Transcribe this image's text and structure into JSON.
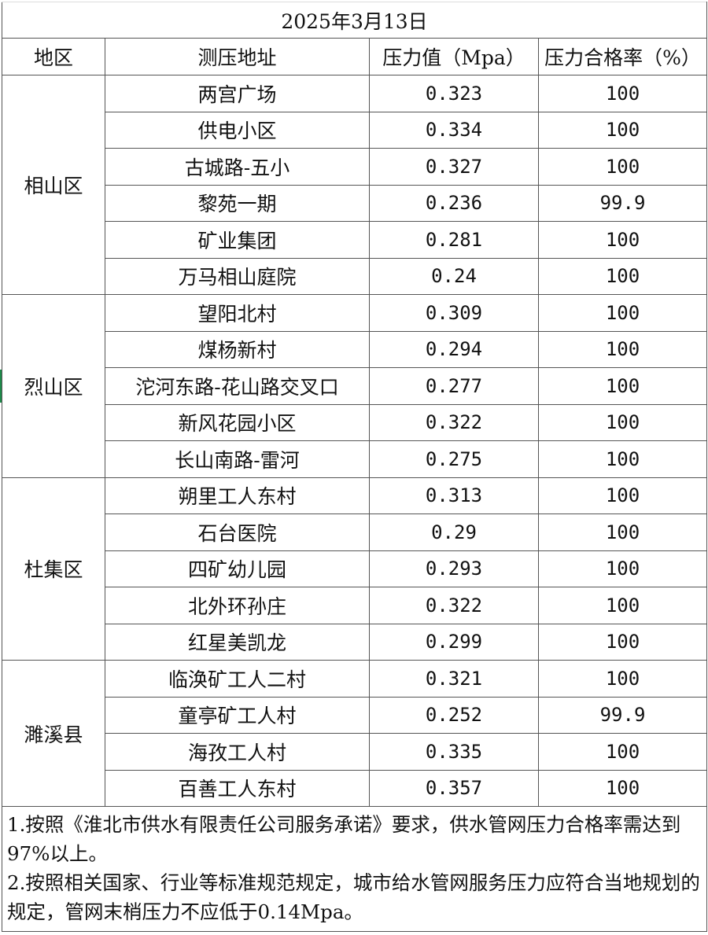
{
  "title": "2025年3月13日",
  "headers": [
    "地区",
    "测压地址",
    "压力值（Mpa）",
    "压力合格率（%）"
  ],
  "regions": [
    {
      "name": "相山区",
      "rows": [
        {
          "address": "两宫广场",
          "pressure": "0.323",
          "rate": "100"
        },
        {
          "address": "供电小区",
          "pressure": "0.334",
          "rate": "100"
        },
        {
          "address": "古城路-五小",
          "pressure": "0.327",
          "rate": "100"
        },
        {
          "address": "黎苑一期",
          "pressure": "0.236",
          "rate": "99.9"
        },
        {
          "address": "矿业集团",
          "pressure": "0.281",
          "rate": "100"
        },
        {
          "address": "万马相山庭院",
          "pressure": "0.24",
          "rate": "100"
        }
      ]
    },
    {
      "name": "烈山区",
      "rows": [
        {
          "address": "望阳北村",
          "pressure": "0.309",
          "rate": "100"
        },
        {
          "address": "煤杨新村",
          "pressure": "0.294",
          "rate": "100"
        },
        {
          "address": "沱河东路-花山路交叉口",
          "pressure": "0.277",
          "rate": "100"
        },
        {
          "address": "新风花园小区",
          "pressure": "0.322",
          "rate": "100"
        },
        {
          "address": "长山南路-雷河",
          "pressure": "0.275",
          "rate": "100"
        }
      ]
    },
    {
      "name": "杜集区",
      "rows": [
        {
          "address": "朔里工人东村",
          "pressure": "0.313",
          "rate": "100"
        },
        {
          "address": "石台医院",
          "pressure": "0.29",
          "rate": "100"
        },
        {
          "address": "四矿幼儿园",
          "pressure": "0.293",
          "rate": "100"
        },
        {
          "address": "北外环孙庄",
          "pressure": "0.322",
          "rate": "100"
        },
        {
          "address": "红星美凯龙",
          "pressure": "0.299",
          "rate": "100"
        }
      ]
    },
    {
      "name": "濉溪县",
      "rows": [
        {
          "address": "临涣矿工人二村",
          "pressure": "0.321",
          "rate": "100"
        },
        {
          "address": "童亭矿工人村",
          "pressure": "0.252",
          "rate": "99.9"
        },
        {
          "address": "海孜工人村",
          "pressure": "0.335",
          "rate": "100"
        },
        {
          "address": "百善工人东村",
          "pressure": "0.357",
          "rate": "100"
        }
      ]
    }
  ],
  "notes": [
    "1.按照《淮北市供水有限责任公司服务承诺》要求，供水管网压力合格率需达到97%以上。",
    "2.按照相关国家、行业等标准规范规定，城市给水管网服务压力应符合当地规划的规定，管网末梢压力不应低于0.14Mpa。"
  ],
  "colors": {
    "selection_marker": "#1e8a4a",
    "grid": "#555555"
  }
}
